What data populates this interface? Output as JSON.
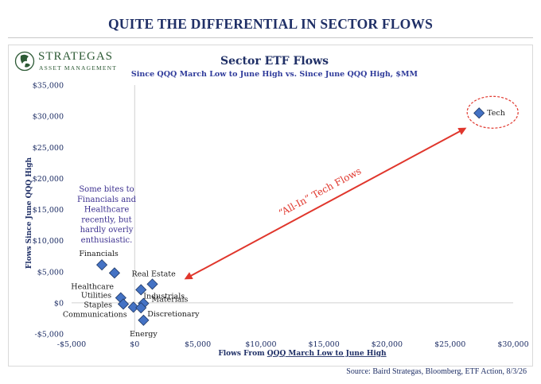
{
  "slide": {
    "title": "QUITE THE DIFFERENTIAL IN SECTOR FLOWS",
    "source": "Source: Baird Strategas, Bloomberg, ETF Action, 8/3/26"
  },
  "logo": {
    "name": "STRATEGAS",
    "subtitle": "ASSET MANAGEMENT"
  },
  "colors": {
    "navy": "#1f2f66",
    "marker_fill": "#4472c4",
    "marker_stroke": "#1f3864",
    "arrow": "#e0362c",
    "annotation_text": "#3b2f8f"
  },
  "chart_data": {
    "type": "scatter",
    "title": "Sector ETF Flows",
    "subtitle": "Since QQQ March Low to June High vs. Since June QQQ High, $MM",
    "xlabel_prefix": "Flows From ",
    "xlabel_underlined": "QQQ March Low to June High",
    "ylabel": "Flows Since June QQQ High",
    "xlim": [
      -5000,
      30000
    ],
    "ylim": [
      -5000,
      35000
    ],
    "x_ticks": [
      -5000,
      0,
      5000,
      10000,
      15000,
      20000,
      25000,
      30000
    ],
    "x_tick_labels": [
      "-$5,000",
      "$0",
      "$5,000",
      "$10,000",
      "$15,000",
      "$20,000",
      "$25,000",
      "$30,000"
    ],
    "y_ticks": [
      -5000,
      0,
      5000,
      10000,
      15000,
      20000,
      25000,
      30000,
      35000
    ],
    "y_tick_labels": [
      "-$5,000",
      "$0",
      "$5,000",
      "$10,000",
      "$15,000",
      "$20,000",
      "$25,000",
      "$30,000",
      "$35,000"
    ],
    "grid": false,
    "points": [
      {
        "label": "Tech",
        "x": 27300,
        "y": 30500
      },
      {
        "label": "Financials",
        "x": -2600,
        "y": 6100
      },
      {
        "label": "Healthcare",
        "x": -1600,
        "y": 4800
      },
      {
        "label": "Real Estate",
        "x": 1400,
        "y": 3000
      },
      {
        "label": "Industrials",
        "x": 500,
        "y": 2100
      },
      {
        "label": "Utilities",
        "x": -1100,
        "y": 800
      },
      {
        "label": "Materials",
        "x": 700,
        "y": -100
      },
      {
        "label": "Staples",
        "x": -900,
        "y": -200
      },
      {
        "label": "Communications",
        "x": -100,
        "y": -700
      },
      {
        "label": "Discretionary",
        "x": 500,
        "y": -800
      },
      {
        "label": "Energy",
        "x": 700,
        "y": -2800
      }
    ],
    "annotations": {
      "financials_note": [
        "Some bites to",
        "Financials and",
        "Healthcare",
        "recently, but",
        "hardly overly",
        "enthusiastic."
      ],
      "arrow_label": "“All-In” Tech Flows"
    }
  }
}
